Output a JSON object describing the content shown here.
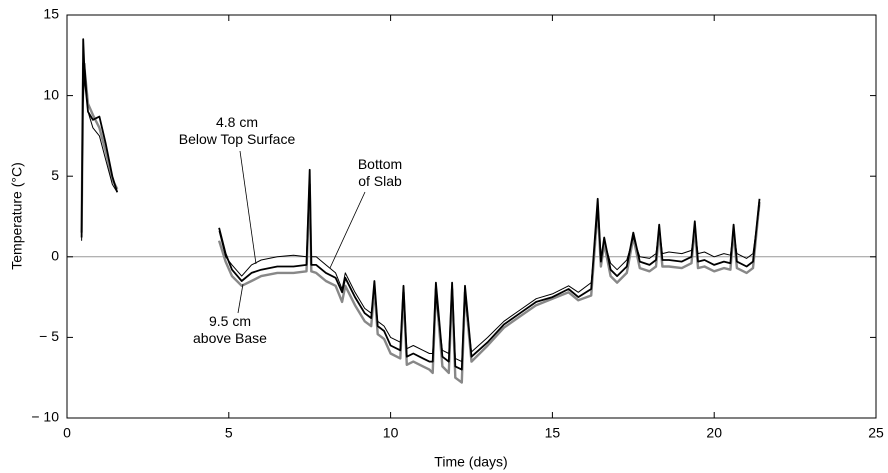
{
  "chart_data": {
    "type": "line",
    "xlabel": "Time (days)",
    "ylabel": "Temperature (°C)",
    "xlim": [
      0,
      25
    ],
    "xticks": [
      0,
      5,
      10,
      15,
      20,
      25
    ],
    "ylim": [
      -10,
      15
    ],
    "yticks": [
      {
        "value": -10,
        "label": "− 10"
      },
      {
        "value": -5,
        "label": "− 5"
      },
      0,
      5,
      10,
      15
    ],
    "hline": 0,
    "x": [
      0.45,
      0.5,
      0.55,
      0.65,
      0.8,
      1.0,
      1.2,
      1.4,
      1.55,
      3.0,
      4.7,
      4.9,
      5.1,
      5.4,
      5.7,
      6.0,
      6.5,
      7.0,
      7.4,
      7.5,
      7.55,
      7.7,
      8.0,
      8.3,
      8.5,
      8.6,
      8.9,
      9.2,
      9.4,
      9.5,
      9.6,
      9.8,
      10.0,
      10.3,
      10.4,
      10.5,
      10.7,
      11.0,
      11.2,
      11.3,
      11.4,
      11.6,
      11.8,
      11.9,
      12.0,
      12.2,
      12.3,
      12.5,
      13.0,
      13.5,
      14.0,
      14.5,
      15.0,
      15.5,
      15.8,
      16.2,
      16.4,
      16.5,
      16.6,
      16.8,
      17.0,
      17.3,
      17.5,
      17.7,
      18.0,
      18.2,
      18.3,
      18.4,
      18.6,
      19.0,
      19.3,
      19.4,
      19.5,
      19.7,
      20.0,
      20.3,
      20.5,
      20.6,
      20.7,
      21.0,
      21.2,
      21.4
    ],
    "series": [
      {
        "name": "9.5 cm\nabove Base",
        "color": "#888888",
        "width": 2.4,
        "values": [
          1.5,
          12,
          11.5,
          9.5,
          8.8,
          8,
          6.5,
          4.8,
          4.2,
          null,
          1.0,
          -0.3,
          -1.2,
          -1.8,
          -1.5,
          -1.2,
          -1.0,
          -1.0,
          -0.9,
          4.5,
          -0.9,
          -1.0,
          -1.5,
          -1.8,
          -2.8,
          -1.8,
          -3.0,
          -4.0,
          -4.3,
          -2.0,
          -4.8,
          -5.1,
          -6.0,
          -6.3,
          -2.2,
          -6.7,
          -6.5,
          -6.8,
          -7.0,
          -7.2,
          -2.0,
          -6.8,
          -7.2,
          -2.0,
          -7.5,
          -7.8,
          -2.2,
          -6.5,
          -5.5,
          -4.4,
          -3.7,
          -3.0,
          -2.6,
          -2.2,
          -2.7,
          -2.4,
          3.0,
          -0.6,
          0.8,
          -1.2,
          -1.6,
          -1.0,
          1.2,
          -0.7,
          -0.9,
          -0.6,
          1.6,
          -0.6,
          -0.6,
          -0.7,
          -0.4,
          1.8,
          -0.7,
          -0.6,
          -0.9,
          -0.7,
          -0.8,
          1.6,
          -0.7,
          -1.0,
          -0.7,
          3.4
        ]
      },
      {
        "name": "4.8 cm\nBelow Top Surface",
        "color": "#000000",
        "width": 1,
        "values": [
          1.0,
          9.5,
          12,
          9,
          8,
          7.5,
          6,
          4.5,
          4,
          null,
          1.6,
          0,
          -0.5,
          -1.2,
          -0.5,
          -0.2,
          0,
          0.1,
          0,
          4.5,
          0,
          0,
          -0.5,
          -1.0,
          -2.0,
          -1.0,
          -2.2,
          -3.2,
          -3.5,
          -2.0,
          -4.0,
          -4.3,
          -5.0,
          -5.3,
          -2.5,
          -5.7,
          -5.5,
          -5.8,
          -6.0,
          -6.0,
          -2.5,
          -5.8,
          -6.0,
          -2.0,
          -6.3,
          -6.5,
          -2.5,
          -5.9,
          -5.0,
          -4.0,
          -3.3,
          -2.6,
          -2.3,
          -1.8,
          -2.2,
          -1.6,
          2.8,
          0,
          1.0,
          -0.4,
          -0.8,
          -0.2,
          1.2,
          0,
          -0.1,
          0.2,
          1.8,
          0.2,
          0.3,
          0.2,
          0.4,
          1.8,
          0.2,
          0.3,
          0,
          0.2,
          0.1,
          1.6,
          0.2,
          -0.1,
          0.2,
          3.2
        ]
      },
      {
        "name": "Bottom\nof Slab",
        "color": "#000000",
        "width": 1.8,
        "values": [
          1.2,
          13.5,
          11,
          9,
          8.5,
          8.7,
          7,
          5,
          4,
          null,
          1.8,
          0.2,
          -0.8,
          -1.5,
          -1.0,
          -0.8,
          -0.6,
          -0.6,
          -0.5,
          5.4,
          -0.5,
          -0.5,
          -1.0,
          -1.3,
          -2.2,
          -1.3,
          -2.5,
          -3.5,
          -3.8,
          -1.5,
          -4.3,
          -4.6,
          -5.5,
          -5.8,
          -1.8,
          -6.2,
          -6.0,
          -6.3,
          -6.5,
          -6.5,
          -1.6,
          -6.2,
          -6.5,
          -1.6,
          -6.8,
          -7.0,
          -1.8,
          -6.2,
          -5.3,
          -4.2,
          -3.5,
          -2.8,
          -2.5,
          -2.0,
          -2.5,
          -2.0,
          3.6,
          -0.3,
          1.2,
          -0.8,
          -1.2,
          -0.6,
          1.5,
          -0.3,
          -0.5,
          -0.2,
          2.0,
          -0.2,
          -0.2,
          -0.3,
          0,
          2.2,
          -0.3,
          -0.2,
          -0.5,
          -0.3,
          -0.4,
          2.0,
          -0.3,
          -0.6,
          -0.3,
          3.6
        ]
      }
    ]
  }
}
